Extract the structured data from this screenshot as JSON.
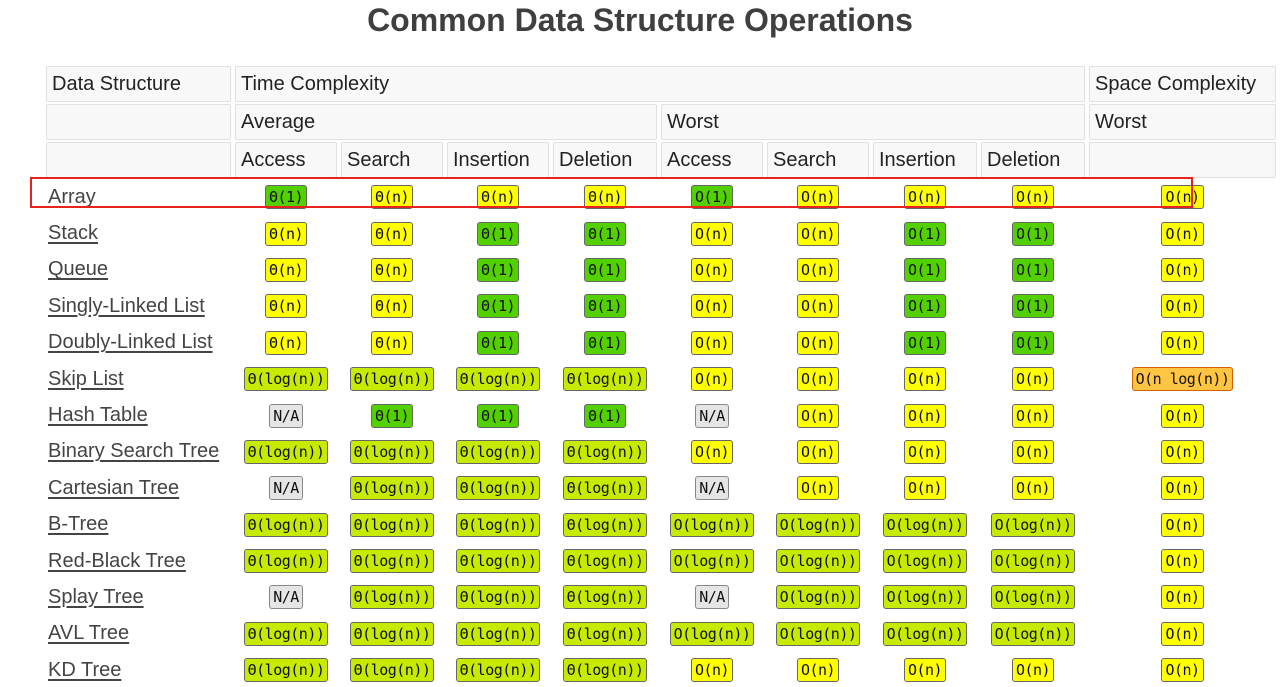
{
  "title": "Common Data Structure Operations",
  "headers": {
    "data_structure": "Data Structure",
    "time_complexity": "Time Complexity",
    "space_complexity": "Space Complexity",
    "average": "Average",
    "worst": "Worst",
    "space_worst": "Worst",
    "operations": [
      "Access",
      "Search",
      "Insertion",
      "Deletion",
      "Access",
      "Search",
      "Insertion",
      "Deletion"
    ]
  },
  "colors": {
    "green": "#53d000",
    "lime": "#c8ea00",
    "yellow": "#ffff00",
    "orange": "#ffc543",
    "gray": "#e5e5e5",
    "highlight": "#e8231d"
  },
  "highlighted_row": "Array",
  "rows": [
    {
      "name": "Array",
      "cells": [
        {
          "text": "Θ(1)",
          "color": "green"
        },
        {
          "text": "Θ(n)",
          "color": "yellow"
        },
        {
          "text": "Θ(n)",
          "color": "yellow"
        },
        {
          "text": "Θ(n)",
          "color": "yellow"
        },
        {
          "text": "O(1)",
          "color": "green"
        },
        {
          "text": "O(n)",
          "color": "yellow"
        },
        {
          "text": "O(n)",
          "color": "yellow"
        },
        {
          "text": "O(n)",
          "color": "yellow"
        },
        {
          "text": "O(n)",
          "color": "yellow"
        }
      ]
    },
    {
      "name": "Stack",
      "cells": [
        {
          "text": "Θ(n)",
          "color": "yellow"
        },
        {
          "text": "Θ(n)",
          "color": "yellow"
        },
        {
          "text": "Θ(1)",
          "color": "green"
        },
        {
          "text": "Θ(1)",
          "color": "green"
        },
        {
          "text": "O(n)",
          "color": "yellow"
        },
        {
          "text": "O(n)",
          "color": "yellow"
        },
        {
          "text": "O(1)",
          "color": "green"
        },
        {
          "text": "O(1)",
          "color": "green"
        },
        {
          "text": "O(n)",
          "color": "yellow"
        }
      ]
    },
    {
      "name": "Queue",
      "cells": [
        {
          "text": "Θ(n)",
          "color": "yellow"
        },
        {
          "text": "Θ(n)",
          "color": "yellow"
        },
        {
          "text": "Θ(1)",
          "color": "green"
        },
        {
          "text": "Θ(1)",
          "color": "green"
        },
        {
          "text": "O(n)",
          "color": "yellow"
        },
        {
          "text": "O(n)",
          "color": "yellow"
        },
        {
          "text": "O(1)",
          "color": "green"
        },
        {
          "text": "O(1)",
          "color": "green"
        },
        {
          "text": "O(n)",
          "color": "yellow"
        }
      ]
    },
    {
      "name": "Singly-Linked List",
      "cells": [
        {
          "text": "Θ(n)",
          "color": "yellow"
        },
        {
          "text": "Θ(n)",
          "color": "yellow"
        },
        {
          "text": "Θ(1)",
          "color": "green"
        },
        {
          "text": "Θ(1)",
          "color": "green"
        },
        {
          "text": "O(n)",
          "color": "yellow"
        },
        {
          "text": "O(n)",
          "color": "yellow"
        },
        {
          "text": "O(1)",
          "color": "green"
        },
        {
          "text": "O(1)",
          "color": "green"
        },
        {
          "text": "O(n)",
          "color": "yellow"
        }
      ]
    },
    {
      "name": "Doubly-Linked List",
      "cells": [
        {
          "text": "Θ(n)",
          "color": "yellow"
        },
        {
          "text": "Θ(n)",
          "color": "yellow"
        },
        {
          "text": "Θ(1)",
          "color": "green"
        },
        {
          "text": "Θ(1)",
          "color": "green"
        },
        {
          "text": "O(n)",
          "color": "yellow"
        },
        {
          "text": "O(n)",
          "color": "yellow"
        },
        {
          "text": "O(1)",
          "color": "green"
        },
        {
          "text": "O(1)",
          "color": "green"
        },
        {
          "text": "O(n)",
          "color": "yellow"
        }
      ]
    },
    {
      "name": "Skip List",
      "cells": [
        {
          "text": "Θ(log(n))",
          "color": "lime"
        },
        {
          "text": "Θ(log(n))",
          "color": "lime"
        },
        {
          "text": "Θ(log(n))",
          "color": "lime"
        },
        {
          "text": "Θ(log(n))",
          "color": "lime"
        },
        {
          "text": "O(n)",
          "color": "yellow"
        },
        {
          "text": "O(n)",
          "color": "yellow"
        },
        {
          "text": "O(n)",
          "color": "yellow"
        },
        {
          "text": "O(n)",
          "color": "yellow"
        },
        {
          "text": "O(n log(n))",
          "color": "orange"
        }
      ]
    },
    {
      "name": "Hash Table",
      "cells": [
        {
          "text": "N/A",
          "color": "gray"
        },
        {
          "text": "Θ(1)",
          "color": "green"
        },
        {
          "text": "Θ(1)",
          "color": "green"
        },
        {
          "text": "Θ(1)",
          "color": "green"
        },
        {
          "text": "N/A",
          "color": "gray"
        },
        {
          "text": "O(n)",
          "color": "yellow"
        },
        {
          "text": "O(n)",
          "color": "yellow"
        },
        {
          "text": "O(n)",
          "color": "yellow"
        },
        {
          "text": "O(n)",
          "color": "yellow"
        }
      ]
    },
    {
      "name": "Binary Search Tree",
      "cells": [
        {
          "text": "Θ(log(n))",
          "color": "lime"
        },
        {
          "text": "Θ(log(n))",
          "color": "lime"
        },
        {
          "text": "Θ(log(n))",
          "color": "lime"
        },
        {
          "text": "Θ(log(n))",
          "color": "lime"
        },
        {
          "text": "O(n)",
          "color": "yellow"
        },
        {
          "text": "O(n)",
          "color": "yellow"
        },
        {
          "text": "O(n)",
          "color": "yellow"
        },
        {
          "text": "O(n)",
          "color": "yellow"
        },
        {
          "text": "O(n)",
          "color": "yellow"
        }
      ]
    },
    {
      "name": "Cartesian Tree",
      "cells": [
        {
          "text": "N/A",
          "color": "gray"
        },
        {
          "text": "Θ(log(n))",
          "color": "lime"
        },
        {
          "text": "Θ(log(n))",
          "color": "lime"
        },
        {
          "text": "Θ(log(n))",
          "color": "lime"
        },
        {
          "text": "N/A",
          "color": "gray"
        },
        {
          "text": "O(n)",
          "color": "yellow"
        },
        {
          "text": "O(n)",
          "color": "yellow"
        },
        {
          "text": "O(n)",
          "color": "yellow"
        },
        {
          "text": "O(n)",
          "color": "yellow"
        }
      ]
    },
    {
      "name": "B-Tree",
      "cells": [
        {
          "text": "Θ(log(n))",
          "color": "lime"
        },
        {
          "text": "Θ(log(n))",
          "color": "lime"
        },
        {
          "text": "Θ(log(n))",
          "color": "lime"
        },
        {
          "text": "Θ(log(n))",
          "color": "lime"
        },
        {
          "text": "O(log(n))",
          "color": "lime"
        },
        {
          "text": "O(log(n))",
          "color": "lime"
        },
        {
          "text": "O(log(n))",
          "color": "lime"
        },
        {
          "text": "O(log(n))",
          "color": "lime"
        },
        {
          "text": "O(n)",
          "color": "yellow"
        }
      ]
    },
    {
      "name": "Red-Black Tree",
      "cells": [
        {
          "text": "Θ(log(n))",
          "color": "lime"
        },
        {
          "text": "Θ(log(n))",
          "color": "lime"
        },
        {
          "text": "Θ(log(n))",
          "color": "lime"
        },
        {
          "text": "Θ(log(n))",
          "color": "lime"
        },
        {
          "text": "O(log(n))",
          "color": "lime"
        },
        {
          "text": "O(log(n))",
          "color": "lime"
        },
        {
          "text": "O(log(n))",
          "color": "lime"
        },
        {
          "text": "O(log(n))",
          "color": "lime"
        },
        {
          "text": "O(n)",
          "color": "yellow"
        }
      ]
    },
    {
      "name": "Splay Tree",
      "cells": [
        {
          "text": "N/A",
          "color": "gray"
        },
        {
          "text": "Θ(log(n))",
          "color": "lime"
        },
        {
          "text": "Θ(log(n))",
          "color": "lime"
        },
        {
          "text": "Θ(log(n))",
          "color": "lime"
        },
        {
          "text": "N/A",
          "color": "gray"
        },
        {
          "text": "O(log(n))",
          "color": "lime"
        },
        {
          "text": "O(log(n))",
          "color": "lime"
        },
        {
          "text": "O(log(n))",
          "color": "lime"
        },
        {
          "text": "O(n)",
          "color": "yellow"
        }
      ]
    },
    {
      "name": "AVL Tree",
      "cells": [
        {
          "text": "Θ(log(n))",
          "color": "lime"
        },
        {
          "text": "Θ(log(n))",
          "color": "lime"
        },
        {
          "text": "Θ(log(n))",
          "color": "lime"
        },
        {
          "text": "Θ(log(n))",
          "color": "lime"
        },
        {
          "text": "O(log(n))",
          "color": "lime"
        },
        {
          "text": "O(log(n))",
          "color": "lime"
        },
        {
          "text": "O(log(n))",
          "color": "lime"
        },
        {
          "text": "O(log(n))",
          "color": "lime"
        },
        {
          "text": "O(n)",
          "color": "yellow"
        }
      ]
    },
    {
      "name": "KD Tree",
      "cells": [
        {
          "text": "Θ(log(n))",
          "color": "lime"
        },
        {
          "text": "Θ(log(n))",
          "color": "lime"
        },
        {
          "text": "Θ(log(n))",
          "color": "lime"
        },
        {
          "text": "Θ(log(n))",
          "color": "lime"
        },
        {
          "text": "O(n)",
          "color": "yellow"
        },
        {
          "text": "O(n)",
          "color": "yellow"
        },
        {
          "text": "O(n)",
          "color": "yellow"
        },
        {
          "text": "O(n)",
          "color": "yellow"
        },
        {
          "text": "O(n)",
          "color": "yellow"
        }
      ]
    }
  ]
}
